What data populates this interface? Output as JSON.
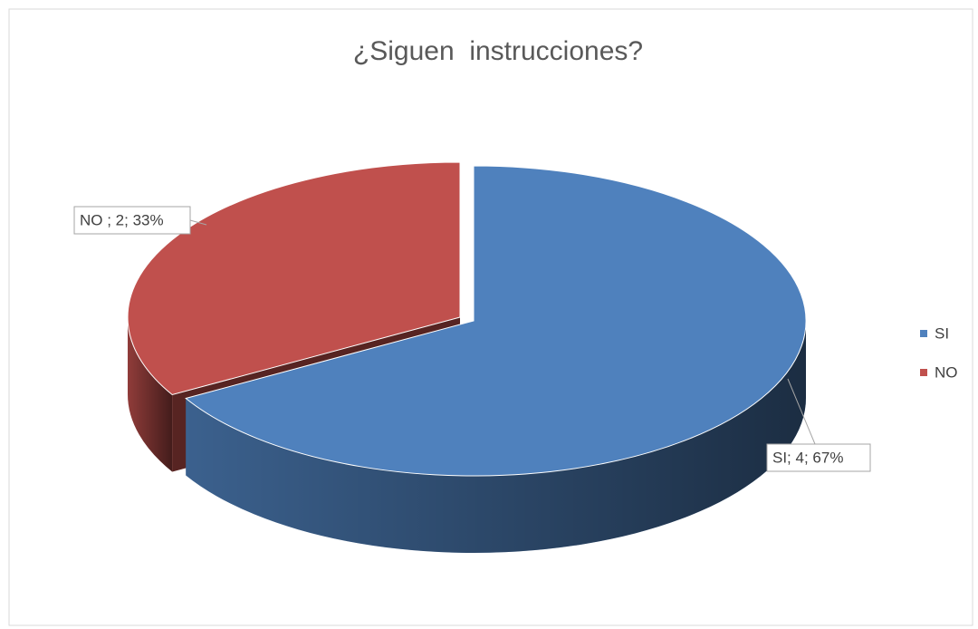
{
  "chart_data": {
    "type": "pie",
    "title": "¿Siguen  instrucciones?",
    "categories": [
      "SI",
      "NO"
    ],
    "values": [
      4,
      2
    ],
    "value_labels": [
      "SI; 4; 67%",
      "NO ; 2; 33%"
    ],
    "colors": [
      "#4f81bd",
      "#c0504d"
    ],
    "legend": "right",
    "three_d": true
  }
}
